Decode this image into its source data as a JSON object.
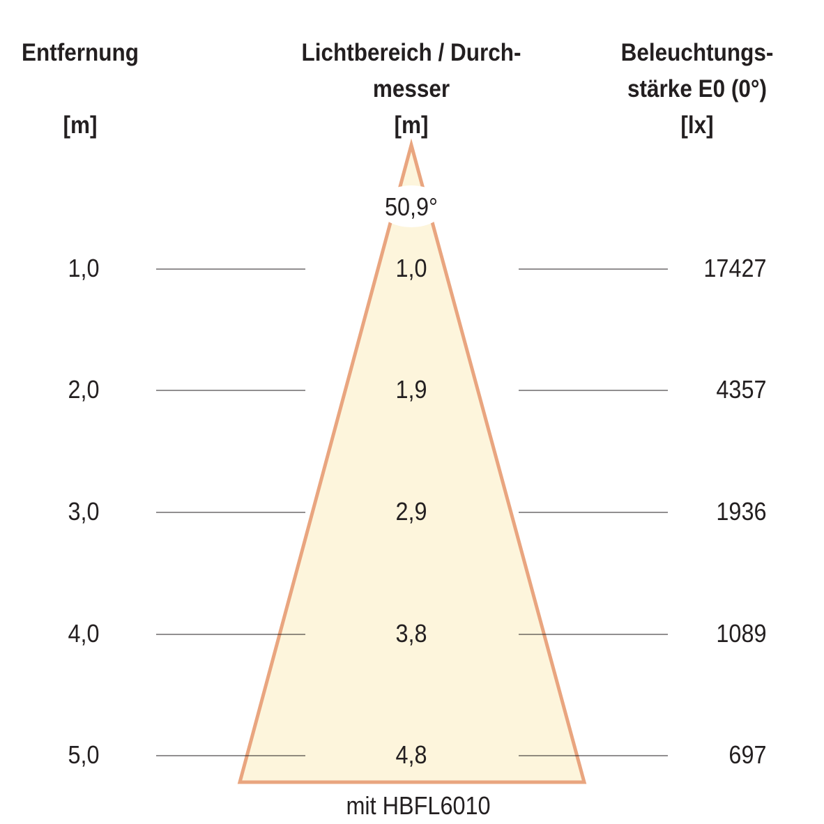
{
  "headers": {
    "distance": {
      "line1": "Entfernung",
      "unit": "[m]"
    },
    "diameter": {
      "line1": "Lichtbereich / Durch-",
      "line2": "messer",
      "unit": "[m]"
    },
    "illuminance": {
      "line1": "Beleuchtungs-",
      "line2": "stärke E0 (0°)",
      "unit": "[lx]"
    }
  },
  "beam_angle": "50,9°",
  "rows": [
    {
      "distance": "1,0",
      "diameter": "1,0",
      "illuminance": "17427"
    },
    {
      "distance": "2,0",
      "diameter": "1,9",
      "illuminance": "4357"
    },
    {
      "distance": "3,0",
      "diameter": "2,9",
      "illuminance": "1936"
    },
    {
      "distance": "4,0",
      "diameter": "3,8",
      "illuminance": "1089"
    },
    {
      "distance": "5,0",
      "diameter": "4,8",
      "illuminance": "697"
    }
  ],
  "footer": "mit HBFL6010",
  "colors": {
    "cone_fill": "#fdf5dc",
    "cone_stroke": "#e9a57f",
    "text": "#231f20"
  }
}
